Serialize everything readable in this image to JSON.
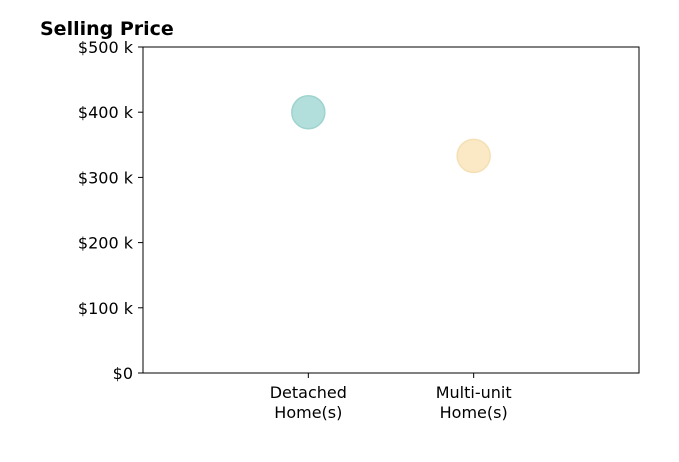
{
  "chart_data": {
    "type": "scatter",
    "title": "Selling Price",
    "xlabel": "",
    "ylabel": "",
    "categories": [
      [
        "Detached",
        "Home(s)"
      ],
      [
        "Multi-unit",
        "Home(s)"
      ]
    ],
    "values": [
      400000,
      333000
    ],
    "point_colors": [
      "#b2dfdb",
      "#fbe9c5"
    ],
    "point_stroke_colors": [
      "#9fd3cd",
      "#f5e0b5"
    ],
    "ylim": [
      0,
      500000
    ],
    "yticks": [
      0,
      100000,
      200000,
      300000,
      400000,
      500000
    ],
    "ytick_labels": [
      "$0",
      "$100 k",
      "$200 k",
      "$300 k",
      "$400 k",
      "$500 k"
    ],
    "x_slots": 3,
    "grid": false,
    "legend": "none"
  }
}
